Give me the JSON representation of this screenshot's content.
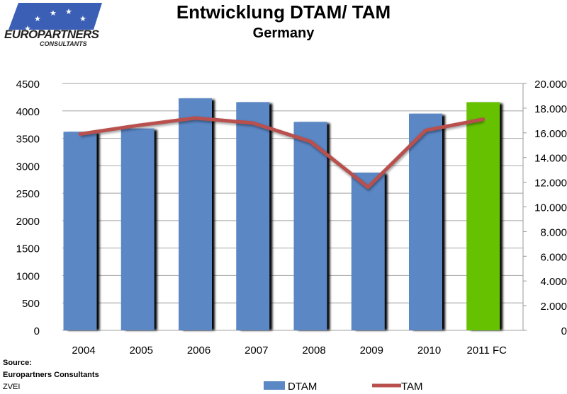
{
  "logo": {
    "line1": "EUROPARTNERS",
    "line2": "CONSULTANTS"
  },
  "source": {
    "label": "Source:",
    "lines": [
      "Europartners Consultants",
      "ZVEI"
    ]
  },
  "colors": {
    "bar": "#5b87c5",
    "bar_forecast": "#66c100",
    "line": "#b9504e",
    "grid": "#b3b3b3"
  },
  "chart_data": {
    "type": "bar+line",
    "title": "Entwicklung DTAM/ TAM",
    "subtitle": "Germany",
    "categories": [
      "2004",
      "2005",
      "2006",
      "2007",
      "2008",
      "2009",
      "2010",
      "2011 FC"
    ],
    "series": [
      {
        "name": "DTAM",
        "type": "bar",
        "axis": "left",
        "values": [
          3620,
          3680,
          4230,
          4160,
          3800,
          2875,
          3950,
          4160
        ]
      },
      {
        "name": "TAM",
        "type": "line",
        "axis": "right",
        "values": [
          15900,
          16600,
          17200,
          16800,
          15300,
          11600,
          16200,
          17100
        ]
      }
    ],
    "left_axis": {
      "range": [
        0,
        4500
      ],
      "ticks": [
        "0",
        "500",
        "1000",
        "1500",
        "2000",
        "2500",
        "3000",
        "3500",
        "4000",
        "4500"
      ]
    },
    "right_axis": {
      "range": [
        0,
        20000
      ],
      "ticks": [
        "0",
        "2.000",
        "4.000",
        "6.000",
        "8.000",
        "10.000",
        "12.000",
        "14.000",
        "16.000",
        "18.000",
        "20.000"
      ]
    },
    "grid": true,
    "legend": "bottom"
  }
}
